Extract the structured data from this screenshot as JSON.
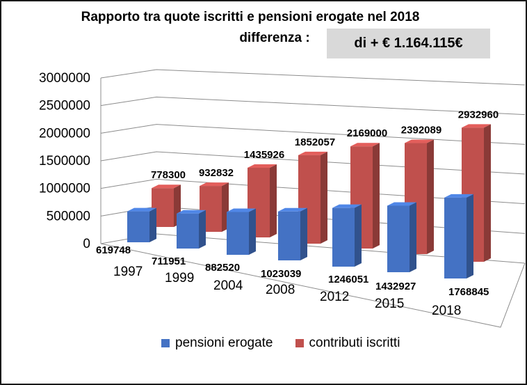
{
  "title_line1": "Rapporto tra quote iscritti e pensioni erogate nel 2018",
  "title_line2": "differenza :",
  "difference_box": "di  + € 1.164.115€",
  "colors": {
    "pensioni": "#4472c4",
    "contributi": "#c0504d"
  },
  "chart_data": {
    "type": "bar",
    "style": "3d-column",
    "title": "Rapporto tra quote iscritti e pensioni erogate nel 2018",
    "categories": [
      "1997",
      "1999",
      "2004",
      "2008",
      "2012",
      "2015",
      "2018"
    ],
    "series": [
      {
        "name": "pensioni erogate",
        "values": [
          619748,
          711951,
          882520,
          1023039,
          1246051,
          1432927,
          1768845
        ]
      },
      {
        "name": "contributi iscritti",
        "values": [
          778300,
          932832,
          1435926,
          1852057,
          2169000,
          2392089,
          2932960
        ]
      }
    ],
    "yticks": [
      "0",
      "500000",
      "1000000",
      "1500000",
      "2000000",
      "2500000",
      "3000000"
    ],
    "ylim": [
      0,
      3000000
    ],
    "grid": true,
    "legend": "bottom"
  }
}
